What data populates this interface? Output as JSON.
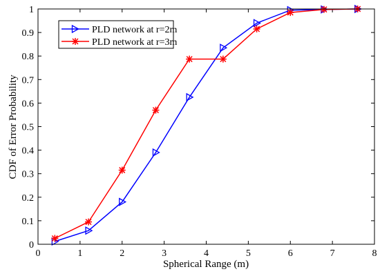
{
  "chart_data": {
    "type": "line",
    "xlabel": "Spherical Range (m)",
    "ylabel": "CDF of Error Probability",
    "xlim": [
      0,
      8
    ],
    "ylim": [
      0,
      1
    ],
    "xticks": [
      0,
      1,
      2,
      3,
      4,
      5,
      6,
      7,
      8
    ],
    "yticks": [
      0,
      0.1,
      0.2,
      0.3,
      0.4,
      0.5,
      0.6,
      0.7,
      0.8,
      0.9,
      1
    ],
    "grid": false,
    "legend_position": "top-left",
    "x": [
      0.4,
      1.2,
      2.0,
      2.8,
      3.6,
      4.4,
      5.2,
      6.0,
      6.8,
      7.6
    ],
    "series": [
      {
        "name": "PLD network at r=2m",
        "color": "#0000ff",
        "marker": "triangle-right",
        "values": [
          0.012,
          0.058,
          0.18,
          0.39,
          0.625,
          0.835,
          0.94,
          0.995,
          0.998,
          1.0
        ]
      },
      {
        "name": "PLD network at r=3m",
        "color": "#ff0000",
        "marker": "asterisk",
        "values": [
          0.025,
          0.095,
          0.315,
          0.57,
          0.787,
          0.787,
          0.915,
          0.985,
          0.998,
          1.0
        ]
      }
    ]
  }
}
